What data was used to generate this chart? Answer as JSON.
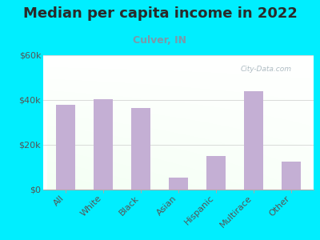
{
  "title": "Median per capita income in 2022",
  "subtitle": "Culver, IN",
  "categories": [
    "All",
    "White",
    "Black",
    "Asian",
    "Hispanic",
    "Multirace",
    "Other"
  ],
  "values": [
    38000,
    40500,
    36500,
    5500,
    15000,
    44000,
    12500
  ],
  "bar_color": "#c4afd4",
  "background_outer": "#00eeff",
  "gradient_bottom_left": "#c8e6c0",
  "gradient_top_right": "#f8fff8",
  "title_color": "#2a2a2a",
  "subtitle_color": "#7a9aaa",
  "tick_label_color": "#555555",
  "ylim": [
    0,
    60000
  ],
  "yticks": [
    0,
    20000,
    40000,
    60000
  ],
  "ytick_labels": [
    "$0",
    "$20k",
    "$40k",
    "$60k"
  ],
  "watermark": "City-Data.com",
  "title_fontsize": 13,
  "subtitle_fontsize": 9,
  "tick_fontsize": 8,
  "bar_width": 0.5
}
